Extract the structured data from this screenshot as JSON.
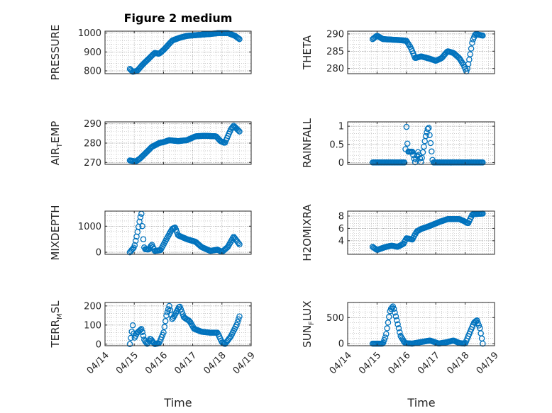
{
  "figure": {
    "title": "Figure 2 medium"
  },
  "x_axis": {
    "label": "Time",
    "ticks": [
      "04/14",
      "04/15",
      "04/16",
      "04/17",
      "04/18",
      "04/19"
    ],
    "tick_values": [
      0,
      1,
      2,
      3,
      4,
      5
    ],
    "unit": "days from 04/14"
  },
  "colors": {
    "marker": "#0072BD",
    "axes": "#262626",
    "grid": "#b0b0b0"
  },
  "chart_data": [
    {
      "type": "scatter",
      "ylabel": "PRESSURE",
      "ylabel_sub": "",
      "ylabel_tail": "",
      "ylim": [
        785,
        1010
      ],
      "yticks": [
        800,
        900,
        1000
      ],
      "ytick_labels": [
        "800",
        "900",
        "1000"
      ],
      "keyframes": [
        [
          0.85,
          810
        ],
        [
          0.95,
          795
        ],
        [
          1.1,
          800
        ],
        [
          1.3,
          835
        ],
        [
          1.5,
          865
        ],
        [
          1.7,
          895
        ],
        [
          1.85,
          890
        ],
        [
          2.0,
          910
        ],
        [
          2.3,
          960
        ],
        [
          2.55,
          975
        ],
        [
          2.8,
          985
        ],
        [
          3.2,
          990
        ],
        [
          3.6,
          995
        ],
        [
          3.9,
          1000
        ],
        [
          4.2,
          1000
        ],
        [
          4.45,
          985
        ],
        [
          4.6,
          968
        ]
      ]
    },
    {
      "type": "scatter",
      "ylabel": "THETA",
      "ylabel_sub": "",
      "ylabel_tail": "",
      "ylim": [
        278.5,
        290.8
      ],
      "yticks": [
        280,
        285,
        290
      ],
      "ytick_labels": [
        "280",
        "285",
        "290"
      ],
      "keyframes": [
        [
          0.85,
          288.5
        ],
        [
          1.0,
          289.5
        ],
        [
          1.2,
          288.5
        ],
        [
          1.8,
          288.2
        ],
        [
          2.0,
          288
        ],
        [
          2.15,
          286
        ],
        [
          2.3,
          283
        ],
        [
          2.5,
          283.5
        ],
        [
          2.8,
          282.8
        ],
        [
          3.0,
          282.2
        ],
        [
          3.2,
          283
        ],
        [
          3.4,
          285
        ],
        [
          3.6,
          284.5
        ],
        [
          3.8,
          283
        ],
        [
          3.95,
          281
        ],
        [
          4.05,
          279
        ],
        [
          4.15,
          283
        ],
        [
          4.25,
          288
        ],
        [
          4.35,
          290
        ],
        [
          4.6,
          289.5
        ]
      ]
    },
    {
      "type": "scatter",
      "ylabel": "AIR",
      "ylabel_sub": "T",
      "ylabel_tail": "EMP",
      "ylim": [
        269,
        291
      ],
      "yticks": [
        270,
        280,
        290
      ],
      "ytick_labels": [
        "270",
        "280",
        "290"
      ],
      "keyframes": [
        [
          0.85,
          271
        ],
        [
          1.05,
          270.5
        ],
        [
          1.2,
          272
        ],
        [
          1.4,
          275
        ],
        [
          1.6,
          278
        ],
        [
          1.85,
          280
        ],
        [
          2.0,
          280.5
        ],
        [
          2.2,
          281.5
        ],
        [
          2.5,
          281
        ],
        [
          2.8,
          281.5
        ],
        [
          3.1,
          283.5
        ],
        [
          3.4,
          283.8
        ],
        [
          3.8,
          283.5
        ],
        [
          3.95,
          281
        ],
        [
          4.1,
          280
        ],
        [
          4.3,
          287
        ],
        [
          4.4,
          289
        ],
        [
          4.6,
          286
        ]
      ]
    },
    {
      "type": "scatter",
      "ylabel": "RAINFALL",
      "ylabel_sub": "",
      "ylabel_tail": "",
      "ylim": [
        -0.05,
        1.12
      ],
      "yticks": [
        0,
        0.5,
        1
      ],
      "ytick_labels": [
        "0",
        "0.5",
        "1"
      ],
      "keyframes": [
        [
          0.85,
          0
        ],
        [
          1.95,
          0
        ],
        [
          2.0,
          1
        ],
        [
          2.05,
          0.3
        ],
        [
          2.2,
          0.3
        ],
        [
          2.3,
          0
        ],
        [
          2.4,
          0.3
        ],
        [
          2.5,
          0
        ],
        [
          2.65,
          0.7
        ],
        [
          2.75,
          1
        ],
        [
          2.8,
          0.7
        ],
        [
          2.9,
          0
        ],
        [
          3.2,
          0
        ],
        [
          4.6,
          0
        ]
      ]
    },
    {
      "type": "scatter",
      "ylabel": "MIXDEPTH",
      "ylabel_sub": "",
      "ylabel_tail": "",
      "ylim": [
        -80,
        1580
      ],
      "yticks": [
        0,
        1000
      ],
      "ytick_labels": [
        "0",
        "1000"
      ],
      "keyframes": [
        [
          0.85,
          0
        ],
        [
          1.0,
          200
        ],
        [
          1.1,
          700
        ],
        [
          1.2,
          1300
        ],
        [
          1.25,
          1500
        ],
        [
          1.3,
          600
        ],
        [
          1.35,
          120
        ],
        [
          1.5,
          100
        ],
        [
          1.6,
          300
        ],
        [
          1.7,
          50
        ],
        [
          1.9,
          80
        ],
        [
          2.1,
          500
        ],
        [
          2.3,
          900
        ],
        [
          2.4,
          950
        ],
        [
          2.5,
          650
        ],
        [
          2.8,
          500
        ],
        [
          3.1,
          400
        ],
        [
          3.3,
          200
        ],
        [
          3.6,
          50
        ],
        [
          3.85,
          100
        ],
        [
          4.0,
          10
        ],
        [
          4.2,
          200
        ],
        [
          4.4,
          600
        ],
        [
          4.6,
          300
        ]
      ]
    },
    {
      "type": "scatter",
      "ylabel": "H2OMIXRA",
      "ylabel_sub": "",
      "ylabel_tail": "",
      "ylim": [
        1.8,
        8.8
      ],
      "yticks": [
        4,
        6,
        8
      ],
      "ytick_labels": [
        "4",
        "6",
        "8"
      ],
      "keyframes": [
        [
          0.85,
          3
        ],
        [
          1.0,
          2.5
        ],
        [
          1.3,
          3
        ],
        [
          1.5,
          3.2
        ],
        [
          1.7,
          3
        ],
        [
          1.9,
          3.5
        ],
        [
          2.0,
          4.4
        ],
        [
          2.2,
          4.2
        ],
        [
          2.35,
          5.5
        ],
        [
          2.5,
          5.9
        ],
        [
          2.8,
          6.4
        ],
        [
          3.1,
          7
        ],
        [
          3.4,
          7.5
        ],
        [
          3.6,
          7.5
        ],
        [
          3.8,
          7.5
        ],
        [
          3.95,
          7.2
        ],
        [
          4.1,
          6.8
        ],
        [
          4.25,
          8.3
        ],
        [
          4.6,
          8.4
        ]
      ]
    },
    {
      "type": "scatter",
      "ylabel": "TERR",
      "ylabel_sub": "M",
      "ylabel_tail": "SL",
      "ylim": [
        -8,
        218
      ],
      "yticks": [
        0,
        100,
        200
      ],
      "ytick_labels": [
        "0",
        "100",
        "200"
      ],
      "keyframes": [
        [
          0.85,
          0
        ],
        [
          0.9,
          50
        ],
        [
          0.95,
          100
        ],
        [
          1.0,
          30
        ],
        [
          1.1,
          60
        ],
        [
          1.25,
          80
        ],
        [
          1.35,
          20
        ],
        [
          1.45,
          0
        ],
        [
          1.55,
          30
        ],
        [
          1.7,
          0
        ],
        [
          1.85,
          5
        ],
        [
          2.0,
          60
        ],
        [
          2.1,
          150
        ],
        [
          2.2,
          200
        ],
        [
          2.3,
          130
        ],
        [
          2.45,
          170
        ],
        [
          2.55,
          200
        ],
        [
          2.7,
          140
        ],
        [
          2.9,
          120
        ],
        [
          3.05,
          80
        ],
        [
          3.3,
          65
        ],
        [
          3.6,
          60
        ],
        [
          3.85,
          60
        ],
        [
          4.0,
          10
        ],
        [
          4.1,
          0
        ],
        [
          4.3,
          40
        ],
        [
          4.5,
          100
        ],
        [
          4.6,
          145
        ]
      ]
    },
    {
      "type": "scatter",
      "ylabel": "SUN",
      "ylabel_sub": "F",
      "ylabel_tail": "LUX",
      "ylim": [
        -40,
        790
      ],
      "yticks": [
        0,
        500
      ],
      "ytick_labels": [
        "0",
        "500"
      ],
      "keyframes": [
        [
          0.85,
          0
        ],
        [
          1.2,
          0
        ],
        [
          1.3,
          150
        ],
        [
          1.45,
          650
        ],
        [
          1.55,
          720
        ],
        [
          1.65,
          500
        ],
        [
          1.8,
          150
        ],
        [
          1.95,
          10
        ],
        [
          2.2,
          0
        ],
        [
          2.6,
          40
        ],
        [
          2.8,
          60
        ],
        [
          3.1,
          0
        ],
        [
          3.4,
          30
        ],
        [
          3.6,
          60
        ],
        [
          3.8,
          10
        ],
        [
          4.0,
          0
        ],
        [
          4.15,
          200
        ],
        [
          4.3,
          400
        ],
        [
          4.4,
          450
        ],
        [
          4.5,
          300
        ],
        [
          4.6,
          0
        ]
      ]
    }
  ]
}
